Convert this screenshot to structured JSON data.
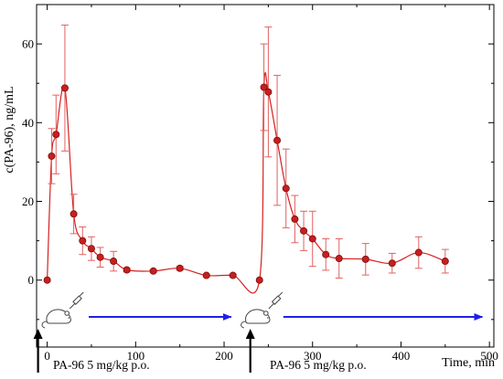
{
  "chart_data": {
    "type": "line",
    "ylabel": "c(PA-96), ng/mL",
    "xlabel": "Time, min",
    "xlim": [
      -12,
      505
    ],
    "ylim": [
      -17,
      70
    ],
    "x_ticks": [
      0,
      100,
      200,
      300,
      400,
      500
    ],
    "y_ticks": [
      0,
      20,
      40,
      60
    ],
    "grid": false,
    "series_color": "#d62020",
    "marker_fill": "#c81e1e",
    "series": [
      {
        "points": [
          {
            "x": 0,
            "y": 0,
            "err": 0
          },
          {
            "x": 5,
            "y": 31.5,
            "err": 7
          },
          {
            "x": 10,
            "y": 37,
            "err": 10
          },
          {
            "x": 20,
            "y": 48.8,
            "err": 16
          },
          {
            "x": 30,
            "y": 16.8,
            "err": 5
          },
          {
            "x": 40,
            "y": 10,
            "err": 3.5
          },
          {
            "x": 50,
            "y": 8,
            "err": 3
          },
          {
            "x": 60,
            "y": 5.8,
            "err": 2.5
          },
          {
            "x": 75,
            "y": 4.8,
            "err": 2.5
          },
          {
            "x": 90,
            "y": 2.6,
            "err": 0.5
          },
          {
            "x": 120,
            "y": 2.3,
            "err": 0.3
          },
          {
            "x": 150,
            "y": 3,
            "err": 0.5
          },
          {
            "x": 180,
            "y": 1.2,
            "err": 0.3
          },
          {
            "x": 210,
            "y": 1.2,
            "err": 0.3
          },
          {
            "x": 240,
            "y": 0,
            "err": 0
          },
          {
            "x": 245,
            "y": 49,
            "err": 11
          },
          {
            "x": 250,
            "y": 47.8,
            "err": 16.5
          },
          {
            "x": 260,
            "y": 35.5,
            "err": 16.5
          },
          {
            "x": 270,
            "y": 23.3,
            "err": 10
          },
          {
            "x": 280,
            "y": 15.5,
            "err": 6
          },
          {
            "x": 290,
            "y": 12.5,
            "err": 5
          },
          {
            "x": 300,
            "y": 10.5,
            "err": 7
          },
          {
            "x": 315,
            "y": 6.5,
            "err": 4
          },
          {
            "x": 330,
            "y": 5.5,
            "err": 5
          },
          {
            "x": 360,
            "y": 5.3,
            "err": 4
          },
          {
            "x": 390,
            "y": 4.3,
            "err": 2.5
          },
          {
            "x": 420,
            "y": 7,
            "err": 4
          },
          {
            "x": 450,
            "y": 4.8,
            "err": 3
          }
        ]
      }
    ],
    "annotations": {
      "dose_label_1": "PA-96 5 mg/kg p.o.",
      "dose_label_2": "PA-96 5 mg/kg p.o.",
      "dose_times": [
        0,
        240
      ],
      "duration_arrows": [
        {
          "from": 47,
          "to": 208,
          "color": "#1f1fe6"
        },
        {
          "from": 267,
          "to": 492,
          "color": "#1f1fe6"
        }
      ],
      "animal_icon": "mouse-with-syringe-icon"
    }
  }
}
